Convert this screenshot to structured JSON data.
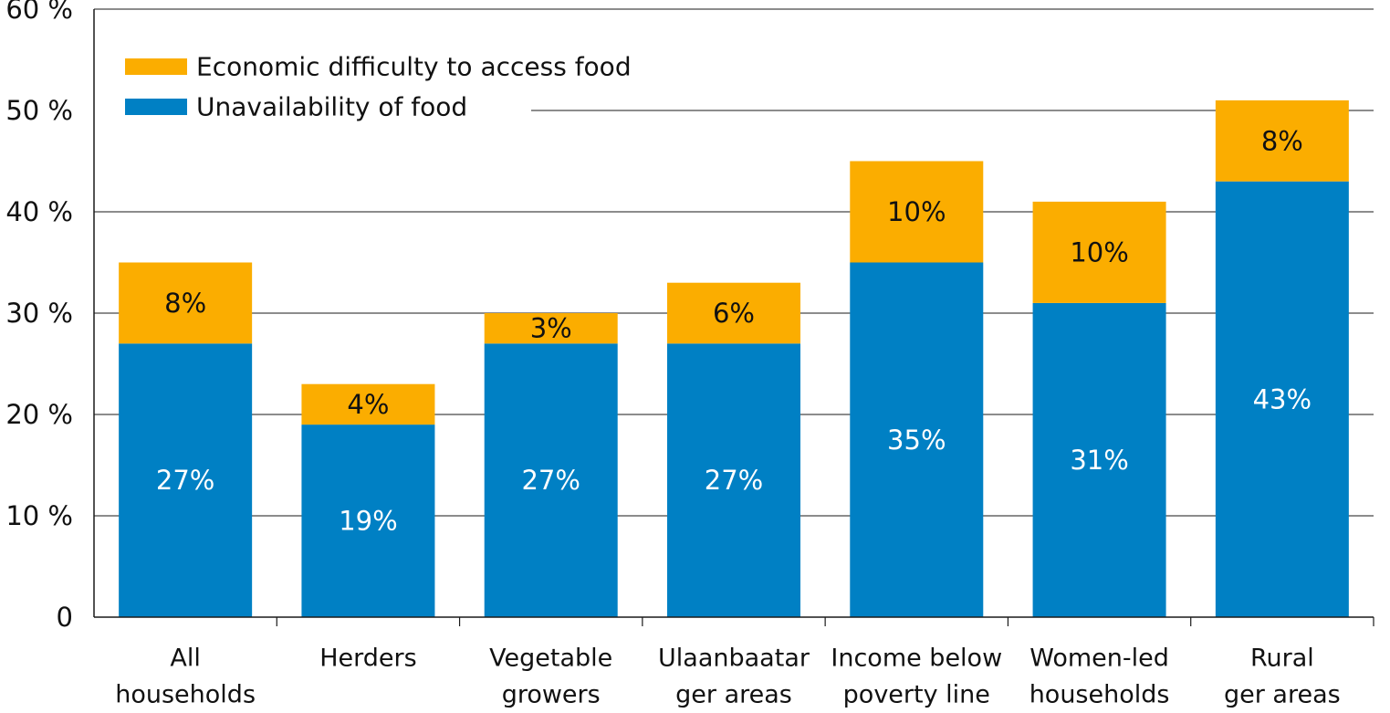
{
  "chart_data": {
    "type": "bar",
    "stacked": true,
    "categories": [
      [
        "All",
        "households"
      ],
      [
        "Herders"
      ],
      [
        "Vegetable",
        "growers"
      ],
      [
        "Ulaanbaatar",
        "ger areas"
      ],
      [
        "Income below",
        "poverty line"
      ],
      [
        "Women-led",
        "households"
      ],
      [
        "Rural",
        "ger areas"
      ]
    ],
    "series": [
      {
        "name": "Unavailability of food",
        "color": "#0080C4",
        "values": [
          27,
          19,
          27,
          27,
          35,
          31,
          43
        ],
        "labels": [
          "27%",
          "19%",
          "27%",
          "27%",
          "35%",
          "31%",
          "43%"
        ]
      },
      {
        "name": "Economic difficulty to access food",
        "color": "#FBAD00",
        "values": [
          8,
          4,
          3,
          6,
          10,
          10,
          8
        ],
        "labels": [
          "8%",
          "4%",
          "3%",
          "6%",
          "10%",
          "10%",
          "8%"
        ]
      }
    ],
    "ylim": [
      0,
      60
    ],
    "yticks": [
      0,
      10,
      20,
      30,
      40,
      50,
      60
    ],
    "ytick_labels": [
      "0",
      "10 %",
      "20 %",
      "30 %",
      "40 %",
      "50 %",
      "60 %"
    ],
    "legend_order": [
      "Economic difficulty to access food",
      "Unavailability of food"
    ],
    "legend_position": "top-left",
    "grid": true,
    "title": "",
    "xlabel": "",
    "ylabel": ""
  }
}
